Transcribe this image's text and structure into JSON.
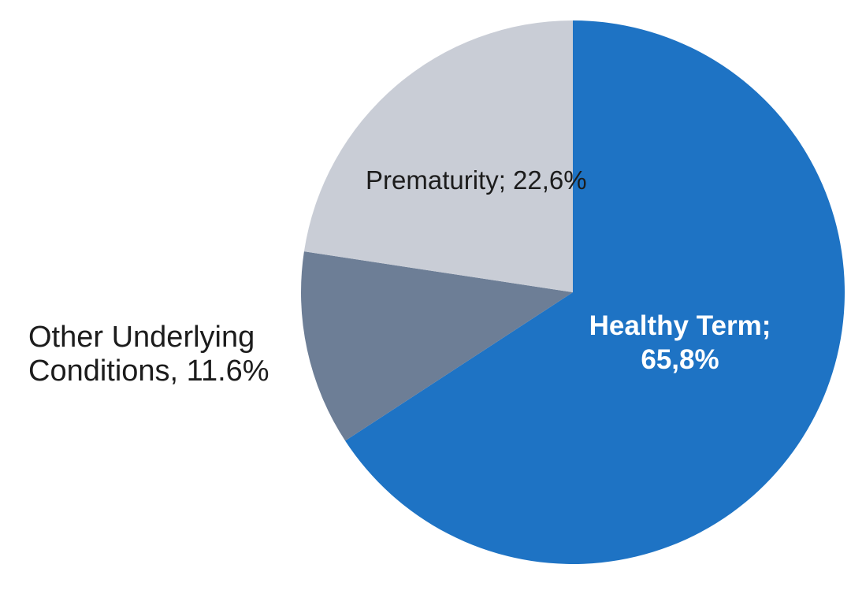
{
  "chart_data": {
    "type": "pie",
    "title": "",
    "legend_position": "none",
    "background_color": "#FFFFFF",
    "start_angle_deg": 0,
    "direction": "clockwise",
    "slices": [
      {
        "name": "Healthy Term",
        "value": 65.8,
        "display_label": "Healthy Term; 65,8%",
        "color": "#1E73C4",
        "label_color": "#FFFFFF",
        "label_placement": "inside"
      },
      {
        "name": "Other Underlying Conditions",
        "value": 11.6,
        "display_label": "Other Underlying Conditions, 11.6%",
        "color": "#6D7E96",
        "label_color": "#1C1C1C",
        "label_placement": "outside-left"
      },
      {
        "name": "Prematurity",
        "value": 22.6,
        "display_label": "Prematurity; 22,6%",
        "color": "#C9CDD6",
        "label_color": "#1C1C1C",
        "label_placement": "inside"
      }
    ]
  }
}
